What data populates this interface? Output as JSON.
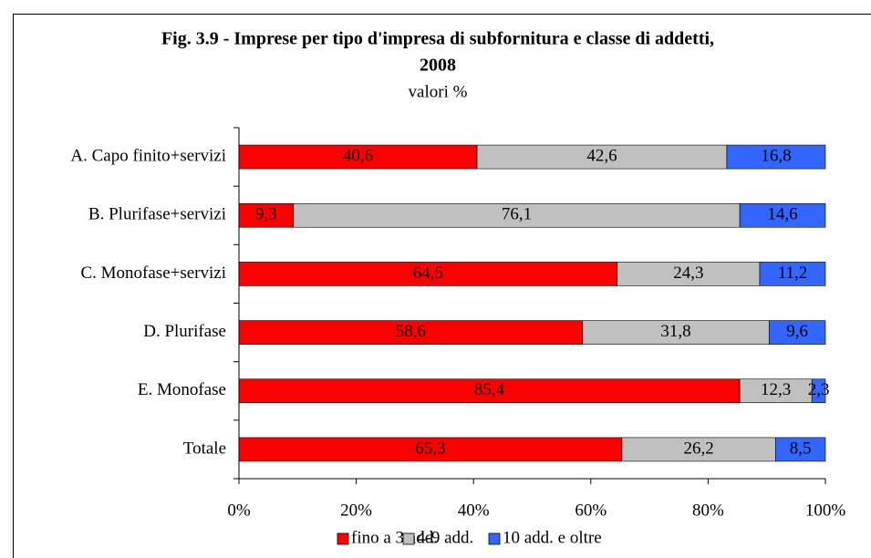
{
  "chart_data": {
    "type": "stacked_barh",
    "title": [
      "Fig. 3.9 - Imprese per tipo d'impresa di subfornitura e classe di addetti,",
      "2008"
    ],
    "subtitle": "valori %",
    "categories": [
      "A. Capo finito+servizi",
      "B. Plurifase+servizi",
      "C. Monofase+servizi",
      "D. Plurifase",
      "E. Monofase",
      "Totale"
    ],
    "series": [
      {
        "name": "fino a 3 add.",
        "color": "#ff0000",
        "label_color": "#ffffff",
        "values": [
          40.6,
          9.3,
          64.5,
          58.6,
          85.4,
          65.3
        ],
        "value_labels": [
          "40,6",
          "9,3",
          "64,5",
          "58,6",
          "85,4",
          "65,3"
        ]
      },
      {
        "name": "4-9 add.",
        "color": "#c0c0c0",
        "label_color": "#000000",
        "values": [
          42.6,
          76.1,
          24.3,
          31.8,
          12.3,
          26.2
        ],
        "value_labels": [
          "42,6",
          "76,1",
          "24,3",
          "31,8",
          "12,3",
          "26,2"
        ]
      },
      {
        "name": "10 add. e oltre",
        "color": "#3366ff",
        "label_color": "#ffffff",
        "values": [
          16.8,
          14.6,
          11.2,
          9.6,
          2.3,
          8.5
        ],
        "value_labels": [
          "16,8",
          "14,6",
          "11,2",
          "9,6",
          "2,3",
          "8,5"
        ]
      }
    ],
    "xlim": [
      0,
      100
    ],
    "xticks": [
      {
        "value": 0,
        "label": "0%"
      },
      {
        "value": 20,
        "label": "20%"
      },
      {
        "value": 40,
        "label": "40%"
      },
      {
        "value": 60,
        "label": "60%"
      },
      {
        "value": 80,
        "label": "80%"
      },
      {
        "value": 100,
        "label": "100%"
      }
    ],
    "legend": "bottom"
  }
}
